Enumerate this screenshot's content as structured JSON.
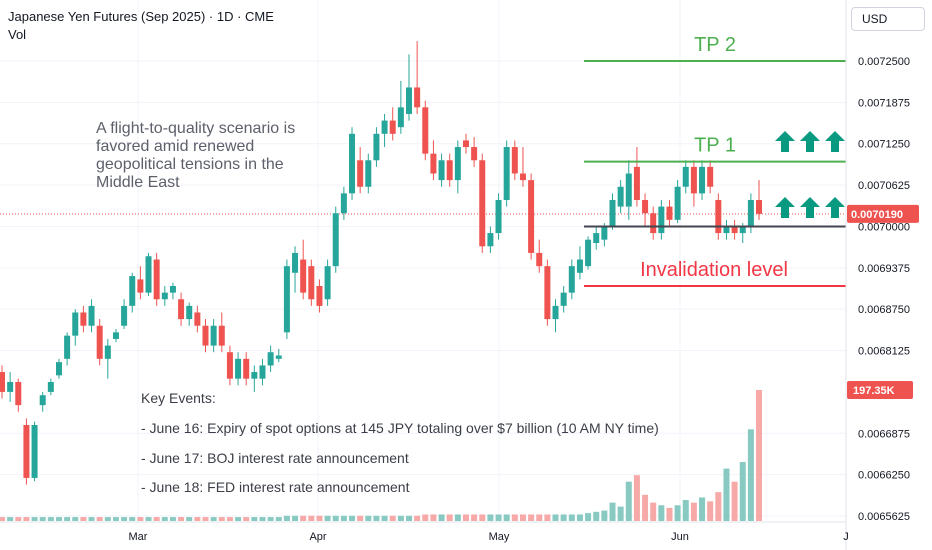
{
  "header": {
    "title": "Japanese Yen Futures (Sep 2025) · 1D · CME",
    "volume_label": "Vol",
    "currency_button": "USD"
  },
  "annotations": {
    "thesis": "A flight-to-quality scenario is favored amid renewed geopolitical tensions in the Middle East",
    "tp2": "TP 2",
    "tp1": "TP 1",
    "invalidation": "Invalidation level",
    "key_events_title": "Key Events:",
    "events": [
      "- June 16: Expiry of spot options at 145 JPY totaling over $7 billion (10 AM NY time)",
      "- June 17: BOJ interest rate announcement",
      "- June 18: FED interest rate announcement"
    ]
  },
  "colors": {
    "up": "#26a69a",
    "down": "#ef5350",
    "vol_up": "#88cac1",
    "vol_down": "#f7a9a7",
    "target": "#4caf50",
    "invalidation": "#f23645",
    "entry": "#434651",
    "arrow": "#089981"
  },
  "chart_data": {
    "type": "candlestick",
    "title": "Japanese Yen Futures (Sep 2025) · 1D · CME",
    "currency": "USD",
    "y_ticks": [
      "0.0072500",
      "0.0071875",
      "0.0071250",
      "0.0070625",
      "0.0070000",
      "0.0069375",
      "0.0068750",
      "0.0068125",
      "0.0066875",
      "0.0066250",
      "0.0065625"
    ],
    "x_ticks": [
      "Mar",
      "Apr",
      "May",
      "Jun",
      "J"
    ],
    "ylim": [
      0.0065575,
      0.00729
    ],
    "last_price": 0.007019,
    "last_price_label": "0.0070190",
    "last_volume_label": "197.35K",
    "levels": {
      "tp2": 0.00725,
      "tp1": 0.007098,
      "entry": 0.007,
      "invalidation": 0.00691
    },
    "candles": [
      {
        "o": 0.00678,
        "h": 0.00679,
        "l": 0.00674,
        "c": 0.00675,
        "v": 0.03
      },
      {
        "o": 0.00675,
        "h": 0.00678,
        "l": 0.006735,
        "c": 0.006765,
        "v": 0.03
      },
      {
        "o": 0.006765,
        "h": 0.00677,
        "l": 0.00672,
        "c": 0.00673,
        "v": 0.03
      },
      {
        "o": 0.0067,
        "h": 0.00671,
        "l": 0.00661,
        "c": 0.00662,
        "v": 0.03
      },
      {
        "o": 0.00662,
        "h": 0.006705,
        "l": 0.006615,
        "c": 0.0067,
        "v": 0.03
      },
      {
        "o": 0.00673,
        "h": 0.00675,
        "l": 0.00672,
        "c": 0.006745,
        "v": 0.03
      },
      {
        "o": 0.00675,
        "h": 0.00677,
        "l": 0.006745,
        "c": 0.006765,
        "v": 0.03
      },
      {
        "o": 0.006775,
        "h": 0.0068,
        "l": 0.00677,
        "c": 0.006795,
        "v": 0.03
      },
      {
        "o": 0.0068,
        "h": 0.00684,
        "l": 0.00679,
        "c": 0.006835,
        "v": 0.03
      },
      {
        "o": 0.006835,
        "h": 0.006875,
        "l": 0.00682,
        "c": 0.00687,
        "v": 0.03
      },
      {
        "o": 0.00687,
        "h": 0.00688,
        "l": 0.00684,
        "c": 0.00685,
        "v": 0.03
      },
      {
        "o": 0.00685,
        "h": 0.00689,
        "l": 0.00684,
        "c": 0.00688,
        "v": 0.03
      },
      {
        "o": 0.00685,
        "h": 0.00686,
        "l": 0.00679,
        "c": 0.0068,
        "v": 0.03
      },
      {
        "o": 0.0068,
        "h": 0.00683,
        "l": 0.00677,
        "c": 0.00682,
        "v": 0.03
      },
      {
        "o": 0.00683,
        "h": 0.006845,
        "l": 0.006825,
        "c": 0.00684,
        "v": 0.03
      },
      {
        "o": 0.00685,
        "h": 0.00689,
        "l": 0.006845,
        "c": 0.00688,
        "v": 0.03
      },
      {
        "o": 0.00688,
        "h": 0.00693,
        "l": 0.00687,
        "c": 0.006925,
        "v": 0.03
      },
      {
        "o": 0.00692,
        "h": 0.00694,
        "l": 0.00689,
        "c": 0.0069,
        "v": 0.03
      },
      {
        "o": 0.0069,
        "h": 0.00696,
        "l": 0.006895,
        "c": 0.006955,
        "v": 0.03
      },
      {
        "o": 0.00695,
        "h": 0.00696,
        "l": 0.00688,
        "c": 0.00689,
        "v": 0.03
      },
      {
        "o": 0.00689,
        "h": 0.00691,
        "l": 0.00688,
        "c": 0.0069,
        "v": 0.03
      },
      {
        "o": 0.0069,
        "h": 0.006915,
        "l": 0.00689,
        "c": 0.00691,
        "v": 0.03
      },
      {
        "o": 0.00689,
        "h": 0.0069,
        "l": 0.00685,
        "c": 0.00686,
        "v": 0.03
      },
      {
        "o": 0.00686,
        "h": 0.006885,
        "l": 0.00685,
        "c": 0.00688,
        "v": 0.03
      },
      {
        "o": 0.00687,
        "h": 0.00688,
        "l": 0.00684,
        "c": 0.00685,
        "v": 0.03
      },
      {
        "o": 0.00685,
        "h": 0.00686,
        "l": 0.00681,
        "c": 0.00682,
        "v": 0.03
      },
      {
        "o": 0.00682,
        "h": 0.00686,
        "l": 0.00681,
        "c": 0.00685,
        "v": 0.03
      },
      {
        "o": 0.00685,
        "h": 0.00687,
        "l": 0.00681,
        "c": 0.00682,
        "v": 0.03
      },
      {
        "o": 0.00681,
        "h": 0.00682,
        "l": 0.00676,
        "c": 0.00677,
        "v": 0.03
      },
      {
        "o": 0.00677,
        "h": 0.00681,
        "l": 0.00676,
        "c": 0.0068,
        "v": 0.03
      },
      {
        "o": 0.0068,
        "h": 0.00681,
        "l": 0.00676,
        "c": 0.00677,
        "v": 0.03
      },
      {
        "o": 0.00677,
        "h": 0.00679,
        "l": 0.00675,
        "c": 0.00678,
        "v": 0.03
      },
      {
        "o": 0.00677,
        "h": 0.0068,
        "l": 0.00676,
        "c": 0.00679,
        "v": 0.03
      },
      {
        "o": 0.00679,
        "h": 0.00682,
        "l": 0.00678,
        "c": 0.00681,
        "v": 0.03
      },
      {
        "o": 0.0068,
        "h": 0.006815,
        "l": 0.006795,
        "c": 0.006805,
        "v": 0.03
      },
      {
        "o": 0.00684,
        "h": 0.00695,
        "l": 0.00683,
        "c": 0.00694,
        "v": 0.04
      },
      {
        "o": 0.00693,
        "h": 0.00697,
        "l": 0.0069,
        "c": 0.00696,
        "v": 0.04
      },
      {
        "o": 0.00695,
        "h": 0.00698,
        "l": 0.00689,
        "c": 0.0069,
        "v": 0.04
      },
      {
        "o": 0.00694,
        "h": 0.00695,
        "l": 0.00688,
        "c": 0.00689,
        "v": 0.04
      },
      {
        "o": 0.00691,
        "h": 0.00692,
        "l": 0.00687,
        "c": 0.00688,
        "v": 0.04
      },
      {
        "o": 0.00689,
        "h": 0.00695,
        "l": 0.00688,
        "c": 0.00694,
        "v": 0.04
      },
      {
        "o": 0.00694,
        "h": 0.00703,
        "l": 0.00693,
        "c": 0.00702,
        "v": 0.04
      },
      {
        "o": 0.00702,
        "h": 0.00706,
        "l": 0.00701,
        "c": 0.00705,
        "v": 0.04
      },
      {
        "o": 0.00705,
        "h": 0.00715,
        "l": 0.00704,
        "c": 0.00714,
        "v": 0.04
      },
      {
        "o": 0.0071,
        "h": 0.00712,
        "l": 0.00705,
        "c": 0.00706,
        "v": 0.04
      },
      {
        "o": 0.00706,
        "h": 0.00711,
        "l": 0.00705,
        "c": 0.0071,
        "v": 0.04
      },
      {
        "o": 0.0071,
        "h": 0.00715,
        "l": 0.00709,
        "c": 0.00714,
        "v": 0.04
      },
      {
        "o": 0.00714,
        "h": 0.00717,
        "l": 0.00712,
        "c": 0.00716,
        "v": 0.04
      },
      {
        "o": 0.00716,
        "h": 0.00718,
        "l": 0.00713,
        "c": 0.00714,
        "v": 0.04
      },
      {
        "o": 0.00715,
        "h": 0.00722,
        "l": 0.00714,
        "c": 0.00718,
        "v": 0.04
      },
      {
        "o": 0.00717,
        "h": 0.00726,
        "l": 0.00716,
        "c": 0.00721,
        "v": 0.04
      },
      {
        "o": 0.00721,
        "h": 0.00728,
        "l": 0.00717,
        "c": 0.00718,
        "v": 0.04
      },
      {
        "o": 0.00718,
        "h": 0.00719,
        "l": 0.0071,
        "c": 0.00711,
        "v": 0.05
      },
      {
        "o": 0.00711,
        "h": 0.00713,
        "l": 0.00707,
        "c": 0.00708,
        "v": 0.05
      },
      {
        "o": 0.00707,
        "h": 0.00711,
        "l": 0.00706,
        "c": 0.0071,
        "v": 0.05
      },
      {
        "o": 0.0071,
        "h": 0.00711,
        "l": 0.00706,
        "c": 0.00707,
        "v": 0.05
      },
      {
        "o": 0.00707,
        "h": 0.00713,
        "l": 0.00705,
        "c": 0.00712,
        "v": 0.05
      },
      {
        "o": 0.00713,
        "h": 0.00714,
        "l": 0.00711,
        "c": 0.00712,
        "v": 0.05
      },
      {
        "o": 0.00712,
        "h": 0.007135,
        "l": 0.00709,
        "c": 0.0071,
        "v": 0.05
      },
      {
        "o": 0.0071,
        "h": 0.00711,
        "l": 0.00696,
        "c": 0.00697,
        "v": 0.05
      },
      {
        "o": 0.00697,
        "h": 0.007,
        "l": 0.00696,
        "c": 0.00699,
        "v": 0.05
      },
      {
        "o": 0.00699,
        "h": 0.00705,
        "l": 0.00698,
        "c": 0.00704,
        "v": 0.05
      },
      {
        "o": 0.00704,
        "h": 0.00713,
        "l": 0.00703,
        "c": 0.00712,
        "v": 0.05
      },
      {
        "o": 0.00712,
        "h": 0.00713,
        "l": 0.00707,
        "c": 0.00708,
        "v": 0.05
      },
      {
        "o": 0.00708,
        "h": 0.00712,
        "l": 0.00706,
        "c": 0.00707,
        "v": 0.05
      },
      {
        "o": 0.00707,
        "h": 0.00708,
        "l": 0.00695,
        "c": 0.00696,
        "v": 0.05
      },
      {
        "o": 0.00696,
        "h": 0.00698,
        "l": 0.00693,
        "c": 0.00694,
        "v": 0.05
      },
      {
        "o": 0.00694,
        "h": 0.00695,
        "l": 0.00685,
        "c": 0.00686,
        "v": 0.05
      },
      {
        "o": 0.00686,
        "h": 0.00689,
        "l": 0.00684,
        "c": 0.00688,
        "v": 0.05
      },
      {
        "o": 0.00688,
        "h": 0.00691,
        "l": 0.00687,
        "c": 0.0069,
        "v": 0.05
      },
      {
        "o": 0.0069,
        "h": 0.00695,
        "l": 0.00689,
        "c": 0.00694,
        "v": 0.05
      },
      {
        "o": 0.00693,
        "h": 0.00697,
        "l": 0.00692,
        "c": 0.00695,
        "v": 0.05
      },
      {
        "o": 0.00694,
        "h": 0.006985,
        "l": 0.006935,
        "c": 0.00698,
        "v": 0.06
      },
      {
        "o": 0.006975,
        "h": 0.007,
        "l": 0.006965,
        "c": 0.00699,
        "v": 0.07
      },
      {
        "o": 0.00698,
        "h": 0.007005,
        "l": 0.00697,
        "c": 0.007,
        "v": 0.08
      },
      {
        "o": 0.007,
        "h": 0.00705,
        "l": 0.006995,
        "c": 0.00704,
        "v": 0.14
      },
      {
        "o": 0.00703,
        "h": 0.00707,
        "l": 0.00702,
        "c": 0.00706,
        "v": 0.11
      },
      {
        "o": 0.00703,
        "h": 0.0071,
        "l": 0.00701,
        "c": 0.00708,
        "v": 0.3
      },
      {
        "o": 0.00709,
        "h": 0.00712,
        "l": 0.00703,
        "c": 0.00704,
        "v": 0.35
      },
      {
        "o": 0.00704,
        "h": 0.00705,
        "l": 0.007,
        "c": 0.00702,
        "v": 0.2
      },
      {
        "o": 0.00702,
        "h": 0.00703,
        "l": 0.00698,
        "c": 0.00699,
        "v": 0.14
      },
      {
        "o": 0.00699,
        "h": 0.00704,
        "l": 0.00698,
        "c": 0.00703,
        "v": 0.12
      },
      {
        "o": 0.00703,
        "h": 0.00704,
        "l": 0.007,
        "c": 0.00701,
        "v": 0.1
      },
      {
        "o": 0.00701,
        "h": 0.00707,
        "l": 0.007005,
        "c": 0.00706,
        "v": 0.12
      },
      {
        "o": 0.00706,
        "h": 0.0071,
        "l": 0.00705,
        "c": 0.00709,
        "v": 0.16
      },
      {
        "o": 0.00709,
        "h": 0.0071,
        "l": 0.00703,
        "c": 0.00705,
        "v": 0.14
      },
      {
        "o": 0.00705,
        "h": 0.0071,
        "l": 0.00704,
        "c": 0.00709,
        "v": 0.18
      },
      {
        "o": 0.00709,
        "h": 0.0071,
        "l": 0.00705,
        "c": 0.00706,
        "v": 0.15
      },
      {
        "o": 0.00704,
        "h": 0.00705,
        "l": 0.00698,
        "c": 0.00699,
        "v": 0.22
      },
      {
        "o": 0.00699,
        "h": 0.00701,
        "l": 0.00698,
        "c": 0.007,
        "v": 0.4
      },
      {
        "o": 0.007,
        "h": 0.00701,
        "l": 0.00698,
        "c": 0.00699,
        "v": 0.3
      },
      {
        "o": 0.00699,
        "h": 0.007005,
        "l": 0.006975,
        "c": 0.007,
        "v": 0.45
      },
      {
        "o": 0.007,
        "h": 0.00705,
        "l": 0.00699,
        "c": 0.00704,
        "v": 0.7
      },
      {
        "o": 0.00704,
        "h": 0.00707,
        "l": 0.00701,
        "c": 0.007019,
        "v": 1.0
      }
    ]
  }
}
